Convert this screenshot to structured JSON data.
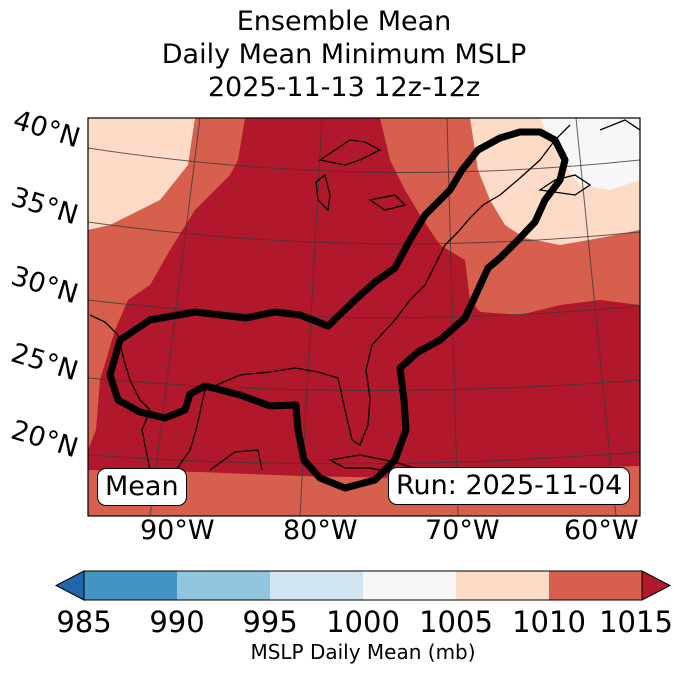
{
  "title": {
    "line1": "Ensemble Mean",
    "line2": "Daily Mean Minimum MSLP",
    "line3": "2025-11-13 12z-12z"
  },
  "map": {
    "lat_labels": [
      "40°N",
      "35°N",
      "30°N",
      "25°N",
      "20°N"
    ],
    "lon_labels": [
      "90°W",
      "80°W",
      "70°W",
      "60°W"
    ],
    "box_left": "Mean",
    "box_right": "Run: 2025-11-04"
  },
  "colorbar": {
    "ticks": [
      "985",
      "990",
      "995",
      "1000",
      "1005",
      "1010",
      "1015"
    ],
    "label": "MSLP Daily Mean (mb)",
    "bins": [
      {
        "range": "<985",
        "color": "#2166ac"
      },
      {
        "range": "985-990",
        "color": "#4393c3"
      },
      {
        "range": "990-995",
        "color": "#92c5de"
      },
      {
        "range": "995-1000",
        "color": "#d1e5f0"
      },
      {
        "range": "1000-1005",
        "color": "#f7f7f7"
      },
      {
        "range": "1005-1010",
        "color": "#fddbc7"
      },
      {
        "range": "1010-1015",
        "color": "#d6604d"
      },
      {
        "range": ">1015",
        "color": "#b2182b"
      }
    ]
  }
}
